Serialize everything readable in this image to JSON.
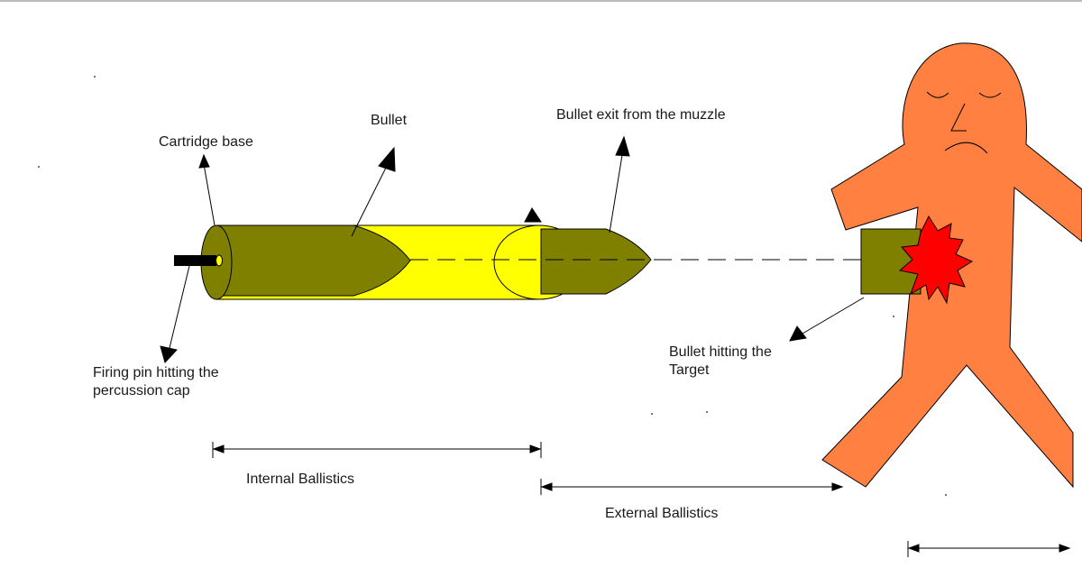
{
  "labels": {
    "cartridge_base": "Cartridge base",
    "bullet": "Bullet",
    "bullet_exit": "Bullet exit from the muzzle",
    "firing_pin_line1": "Firing pin hitting the",
    "firing_pin_line2": "percussion cap",
    "bullet_hitting_line1": "Bullet hitting the",
    "bullet_hitting_line2": "Target",
    "internal_ballistics": "Internal Ballistics",
    "external_ballistics": "External Ballistics"
  },
  "colors": {
    "cartridge_olive": "#808000",
    "casing_yellow": "#ffff00",
    "figure_orange": "#ff8040",
    "wound_red": "#ff0000",
    "firing_pin_black": "#000000",
    "primer_yellow": "#ffff00",
    "line_black": "#000000"
  },
  "icons": {
    "bullet_exit_arrow": "arrowhead-icon",
    "wound": "impact-burst-icon"
  }
}
